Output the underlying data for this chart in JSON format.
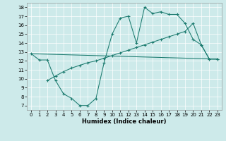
{
  "xlabel": "Humidex (Indice chaleur)",
  "bg_color": "#cdeaea",
  "line_color": "#1a7a6e",
  "xlim": [
    -0.5,
    23.5
  ],
  "ylim": [
    6.5,
    18.5
  ],
  "xticks": [
    0,
    1,
    2,
    3,
    4,
    5,
    6,
    7,
    8,
    9,
    10,
    11,
    12,
    13,
    14,
    15,
    16,
    17,
    18,
    19,
    20,
    21,
    22,
    23
  ],
  "yticks": [
    7,
    8,
    9,
    10,
    11,
    12,
    13,
    14,
    15,
    16,
    17,
    18
  ],
  "line1_x": [
    0,
    1,
    2,
    3,
    4,
    5,
    6,
    7,
    8,
    9,
    10,
    11,
    12,
    13,
    14,
    15,
    16,
    17,
    18,
    19,
    20,
    21,
    22,
    23
  ],
  "line1_y": [
    12.8,
    12.1,
    12.1,
    9.8,
    8.3,
    7.8,
    7.0,
    7.0,
    7.8,
    11.8,
    15.0,
    16.8,
    17.0,
    14.0,
    18.0,
    17.3,
    17.5,
    17.2,
    17.2,
    16.2,
    14.4,
    13.8,
    12.2,
    12.2
  ],
  "line2_x": [
    0,
    23
  ],
  "line2_y": [
    12.8,
    12.2
  ],
  "line3_x": [
    2,
    3,
    4,
    5,
    6,
    7,
    8,
    9,
    10,
    11,
    12,
    13,
    14,
    15,
    16,
    17,
    18,
    19,
    20,
    21,
    22,
    23
  ],
  "line3_y": [
    9.8,
    10.3,
    10.8,
    11.2,
    11.5,
    11.8,
    12.0,
    12.3,
    12.6,
    12.9,
    13.2,
    13.5,
    13.8,
    14.1,
    14.4,
    14.7,
    15.0,
    15.3,
    16.2,
    13.8,
    12.2,
    12.2
  ]
}
